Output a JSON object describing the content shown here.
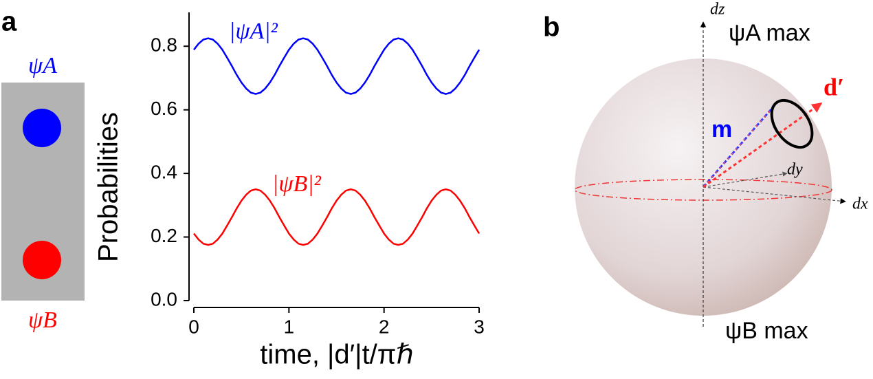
{
  "chart_data": {
    "type": "line",
    "xlabel": "time, |d′|t/πℏ",
    "ylabel": "Probabilities",
    "x": [
      0,
      0.05,
      0.1,
      0.15,
      0.2,
      0.25,
      0.3,
      0.35,
      0.4,
      0.45,
      0.5,
      0.55,
      0.6,
      0.65,
      0.7,
      0.75,
      0.8,
      0.85,
      0.9,
      0.95,
      1,
      1.05,
      1.1,
      1.15,
      1.2,
      1.25,
      1.3,
      1.35,
      1.4,
      1.45,
      1.5,
      1.55,
      1.6,
      1.65,
      1.7,
      1.75,
      1.8,
      1.85,
      1.9,
      1.95,
      2,
      2.05,
      2.1,
      2.15,
      2.2,
      2.25,
      2.3,
      2.35,
      2.4,
      2.45,
      2.5,
      2.55,
      2.6,
      2.65,
      2.7,
      2.75,
      2.8,
      2.85,
      2.9,
      2.95,
      3
    ],
    "series": [
      {
        "name": "|ψA|²",
        "color": "#0000ff",
        "values": [
          0.789,
          0.808,
          0.821,
          0.825,
          0.821,
          0.808,
          0.789,
          0.764,
          0.738,
          0.71,
          0.686,
          0.667,
          0.654,
          0.65,
          0.654,
          0.667,
          0.686,
          0.71,
          0.738,
          0.764,
          0.789,
          0.808,
          0.821,
          0.825,
          0.821,
          0.808,
          0.789,
          0.764,
          0.738,
          0.71,
          0.686,
          0.667,
          0.654,
          0.65,
          0.654,
          0.667,
          0.686,
          0.71,
          0.738,
          0.764,
          0.789,
          0.808,
          0.821,
          0.825,
          0.821,
          0.808,
          0.789,
          0.764,
          0.738,
          0.71,
          0.686,
          0.667,
          0.654,
          0.65,
          0.654,
          0.667,
          0.686,
          0.71,
          0.738,
          0.764,
          0.789
        ]
      },
      {
        "name": "|ψB|²",
        "color": "#ff0000",
        "values": [
          0.211,
          0.192,
          0.179,
          0.175,
          0.179,
          0.192,
          0.211,
          0.236,
          0.262,
          0.29,
          0.314,
          0.333,
          0.346,
          0.35,
          0.346,
          0.333,
          0.314,
          0.29,
          0.262,
          0.236,
          0.211,
          0.192,
          0.179,
          0.175,
          0.179,
          0.192,
          0.211,
          0.236,
          0.262,
          0.29,
          0.314,
          0.333,
          0.346,
          0.35,
          0.346,
          0.333,
          0.314,
          0.29,
          0.262,
          0.236,
          0.211,
          0.192,
          0.179,
          0.175,
          0.179,
          0.192,
          0.211,
          0.236,
          0.262,
          0.29,
          0.314,
          0.333,
          0.346,
          0.35,
          0.346,
          0.333,
          0.314,
          0.29,
          0.262,
          0.236,
          0.211
        ]
      }
    ],
    "xlim": [
      0,
      3
    ],
    "xticks": [
      0,
      1,
      2,
      3
    ],
    "ylim": [
      0,
      0.9
    ],
    "yticks": [
      {
        "value": 0,
        "label": "0.0"
      },
      0.2,
      0.4,
      0.6,
      0.8
    ]
  },
  "panels": {
    "a": "a",
    "b": "b"
  },
  "well": {
    "top": "ψA",
    "bottom": "ψB"
  },
  "diagram": {
    "dz": "dz",
    "dy": "dy",
    "dx": "dx",
    "m": "m",
    "d": "d′",
    "top": "ψA max",
    "bottom": "ψB max"
  }
}
